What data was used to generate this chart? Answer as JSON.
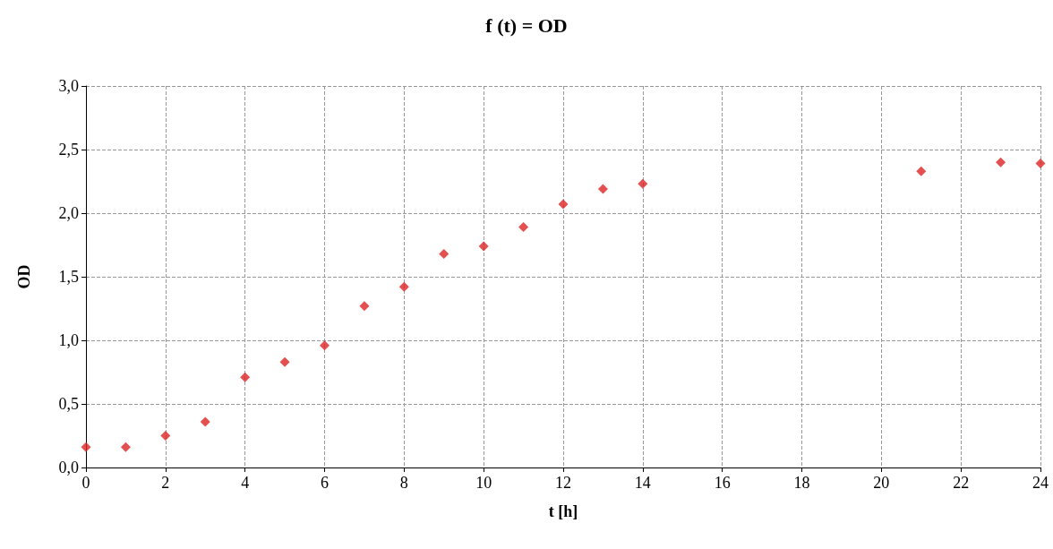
{
  "chart_data": {
    "type": "scatter",
    "title": "f (t) = OD",
    "xlabel": "t [h]",
    "ylabel": "OD",
    "x": [
      0,
      1,
      2,
      3,
      4,
      5,
      6,
      7,
      8,
      9,
      10,
      11,
      12,
      13,
      14,
      21,
      23,
      24
    ],
    "values": [
      0.16,
      0.16,
      0.25,
      0.36,
      0.71,
      0.83,
      0.96,
      1.27,
      1.42,
      1.68,
      1.74,
      1.89,
      2.07,
      2.19,
      2.23,
      2.33,
      2.4,
      2.39
    ],
    "color": "#dd2323",
    "marker": "diamond",
    "grid": true,
    "xlim": [
      0,
      24
    ],
    "xticks": [
      0,
      2,
      4,
      6,
      8,
      10,
      12,
      14,
      16,
      18,
      20,
      22,
      24
    ],
    "ylim": [
      0,
      3
    ],
    "yticks": [
      {
        "value": 0,
        "label": "0,0"
      },
      {
        "value": 0.5,
        "label": "0,5"
      },
      {
        "value": 1,
        "label": "1,0"
      },
      {
        "value": 1.5,
        "label": "1,5"
      },
      {
        "value": 2,
        "label": "2,0"
      },
      {
        "value": 2.5,
        "label": "2,5"
      },
      {
        "value": 3,
        "label": "3,0"
      }
    ]
  }
}
